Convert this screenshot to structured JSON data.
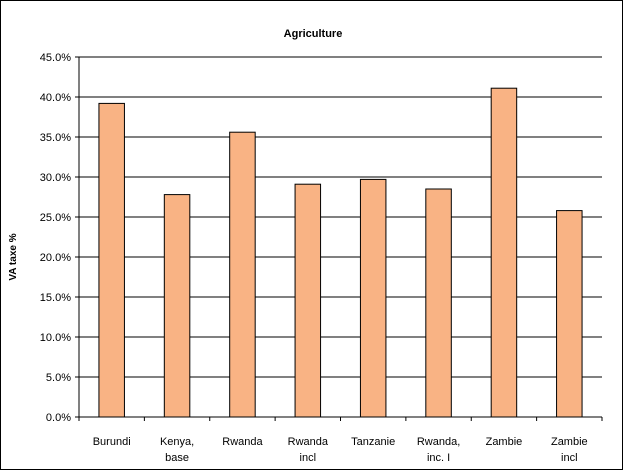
{
  "chart_data": {
    "type": "bar",
    "title": "Agriculture",
    "xlabel": "",
    "ylabel": "VA taxe %",
    "categories": [
      [
        "Burundi"
      ],
      [
        "Kenya,",
        "base"
      ],
      [
        "Rwanda"
      ],
      [
        "Rwanda",
        "incl"
      ],
      [
        "Tanzanie"
      ],
      [
        "Rwanda,",
        "inc. I"
      ],
      [
        "Zambie"
      ],
      [
        "Zambie",
        "incl"
      ]
    ],
    "values": [
      0.392,
      0.278,
      0.356,
      0.291,
      0.297,
      0.285,
      0.411,
      0.258
    ],
    "ylim": [
      0,
      0.45
    ],
    "yticks": [
      "0.0%",
      "5.0%",
      "10.0%",
      "15.0%",
      "20.0%",
      "25.0%",
      "30.0%",
      "35.0%",
      "40.0%",
      "45.0%"
    ],
    "grid": true,
    "legend": "none",
    "colors": {
      "bar_fill": "#F9B384",
      "bar_stroke": "#000000",
      "grid": "#000000",
      "background": "#ffffff"
    }
  }
}
